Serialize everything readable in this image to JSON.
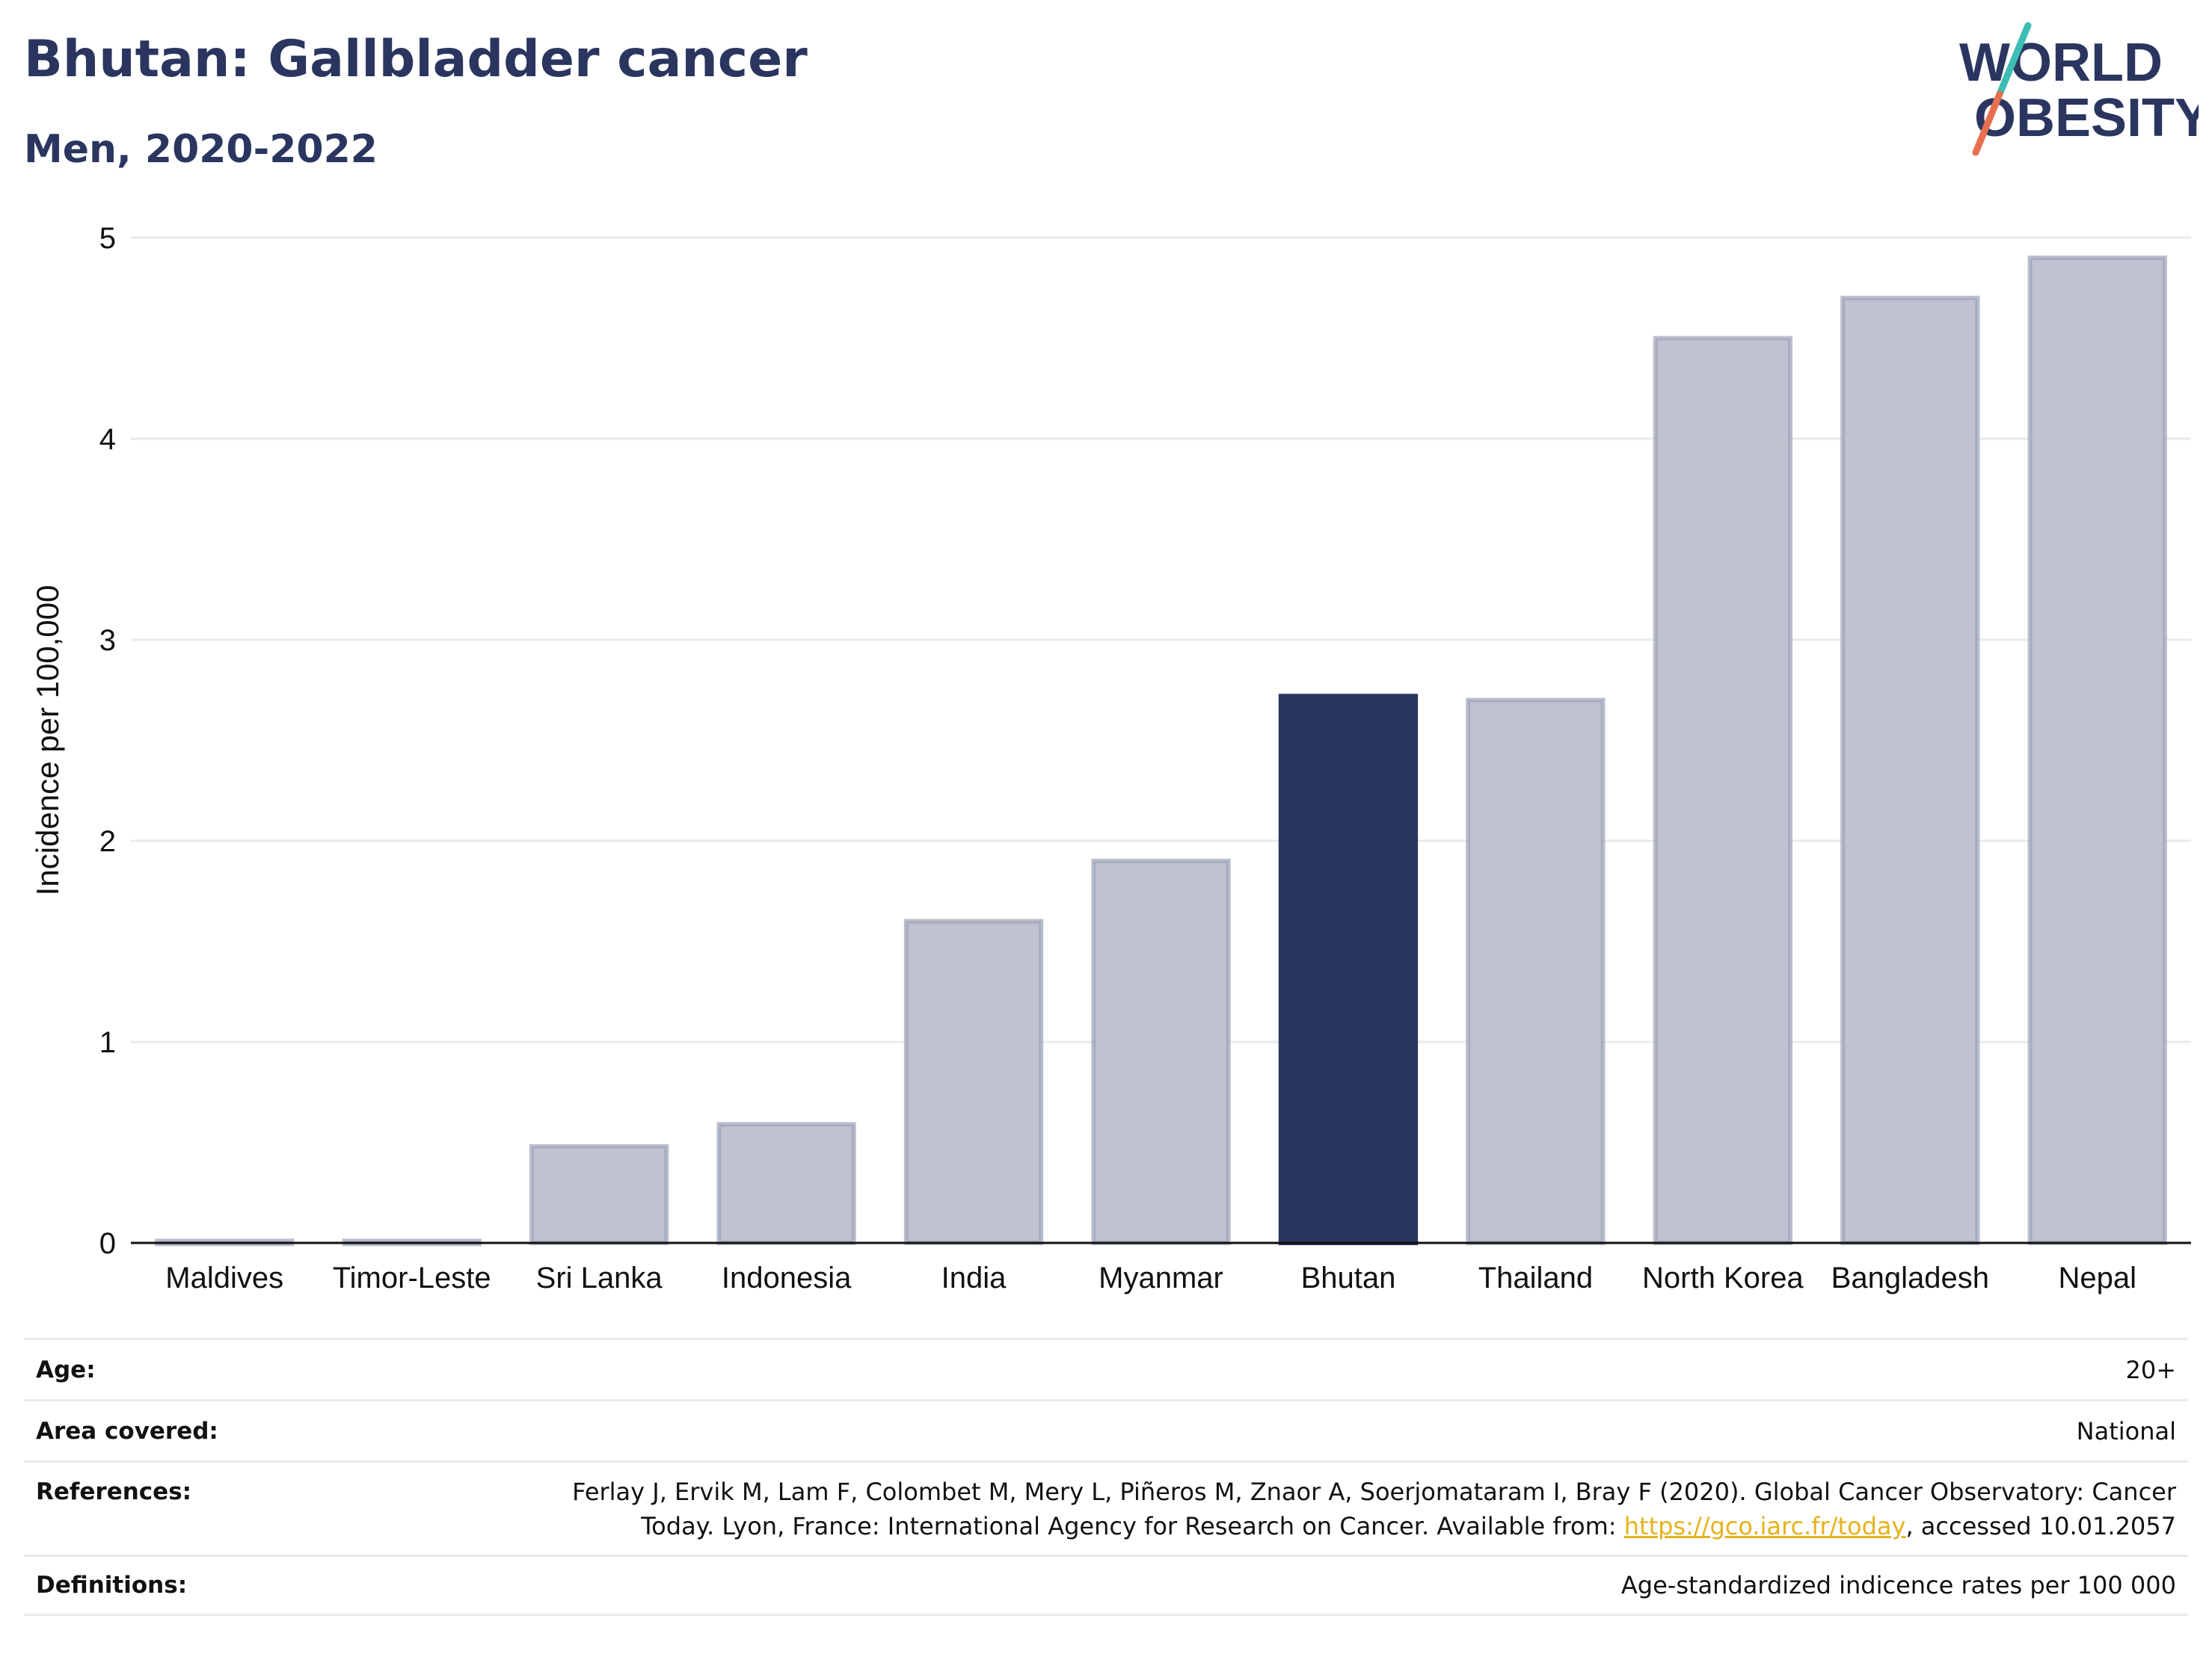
{
  "header": {
    "title": "Bhutan: Gallbladder cancer",
    "subtitle": "Men, 2020-2022"
  },
  "logo": {
    "line1": "WORLD",
    "line2": "OBESITY",
    "slash_colors": [
      "#3dbdb4",
      "#e76f51"
    ],
    "text_color": "#2a365f"
  },
  "colors": {
    "highlight": "#2a365f",
    "other": "#bfc2d0",
    "other_stroke": "#9ea3b8",
    "grid": "#e6ebef",
    "link": "#e4b21b"
  },
  "chart_data": {
    "type": "bar",
    "categories": [
      "Maldives",
      "Timor-Leste",
      "Sri Lanka",
      "Indonesia",
      "India",
      "Myanmar",
      "Bhutan",
      "Thailand",
      "North Korea",
      "Bangladesh",
      "Nepal"
    ],
    "values": [
      0.01,
      0.01,
      0.48,
      0.59,
      1.6,
      1.9,
      2.72,
      2.7,
      4.5,
      4.7,
      4.9
    ],
    "highlight": "Bhutan",
    "ylabel": "Incidence per 100,000",
    "xlabel": "",
    "ylim": [
      0,
      5
    ],
    "yticks": [
      0,
      1,
      2,
      3,
      4,
      5
    ],
    "grid": true
  },
  "meta": {
    "age": {
      "key": "Age:",
      "value": "20+"
    },
    "area": {
      "key": "Area covered:",
      "value": "National"
    },
    "references": {
      "key": "References:",
      "line1": "Ferlay J, Ervik M, Lam F, Colombet M, Mery L, Piñeros M, Znaor A, Soerjomataram I, Bray F (2020). Global Cancer Observatory: Cancer",
      "line2_pre": "Today. Lyon, France: International Agency for Research on Cancer. Available from: ",
      "link": "https://gco.iarc.fr/today",
      "line2_post": ", accessed 10.01.2057"
    },
    "definitions": {
      "key": "Definitions:",
      "value": "Age-standardized indicence rates per 100 000"
    }
  }
}
